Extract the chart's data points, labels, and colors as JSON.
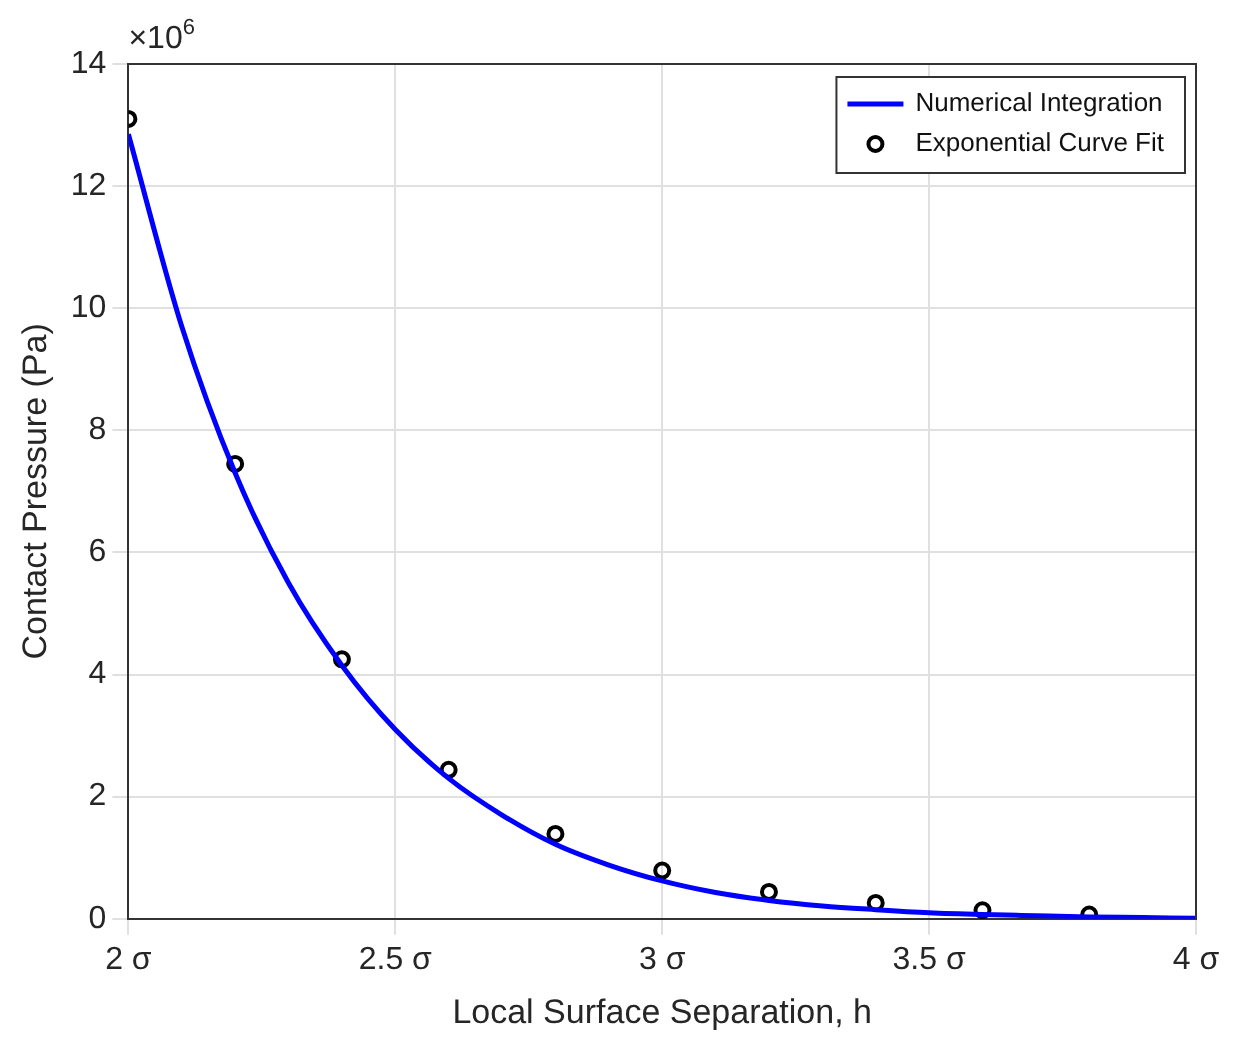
{
  "chart_data": {
    "type": "line",
    "xlabel": "Local Surface Separation, h",
    "ylabel": "Contact Pressure (Pa)",
    "annotations": [
      "×10$^{6}$"
    ],
    "xlim": [
      2,
      4
    ],
    "xticks": [
      {
        "value": 2,
        "label": "2 σ"
      },
      {
        "value": 2.5,
        "label": "2.5 σ"
      },
      {
        "value": 3,
        "label": "3 σ"
      },
      {
        "value": 3.5,
        "label": "3.5 σ"
      },
      {
        "value": 4,
        "label": "4 σ"
      }
    ],
    "ylim": [
      0,
      14
    ],
    "yticks": [
      0,
      2,
      4,
      6,
      8,
      10,
      12,
      14
    ],
    "grid": true,
    "legend": "top right",
    "series": [
      {
        "name": "Numerical Integration",
        "type": "line",
        "color": "#0000ff",
        "marker": "none",
        "line_style": "solid",
        "x": [
          2,
          2.1,
          2.2,
          2.3,
          2.4,
          2.5,
          2.6,
          2.7,
          2.8,
          2.9,
          3.0,
          3.1,
          3.2,
          3.3,
          3.4,
          3.5,
          3.6,
          3.7,
          3.8,
          3.9,
          4.0
        ],
        "values": [
          12.85,
          9.7,
          7.3,
          5.5,
          4.15,
          3.1,
          2.3,
          1.7,
          1.22,
          0.88,
          0.62,
          0.43,
          0.3,
          0.21,
          0.15,
          0.1,
          0.07,
          0.05,
          0.03,
          0.02,
          0.01
        ]
      },
      {
        "name": "Exponential Curve Fit",
        "type": "scatter",
        "color": "#000000",
        "marker": "circle",
        "x": [
          2.0,
          2.2,
          2.4,
          2.6,
          2.8,
          3.0,
          3.2,
          3.4,
          3.6,
          3.8
        ],
        "values": [
          13.1,
          7.45,
          4.25,
          2.44,
          1.39,
          0.79,
          0.44,
          0.26,
          0.14,
          0.07
        ]
      }
    ]
  }
}
